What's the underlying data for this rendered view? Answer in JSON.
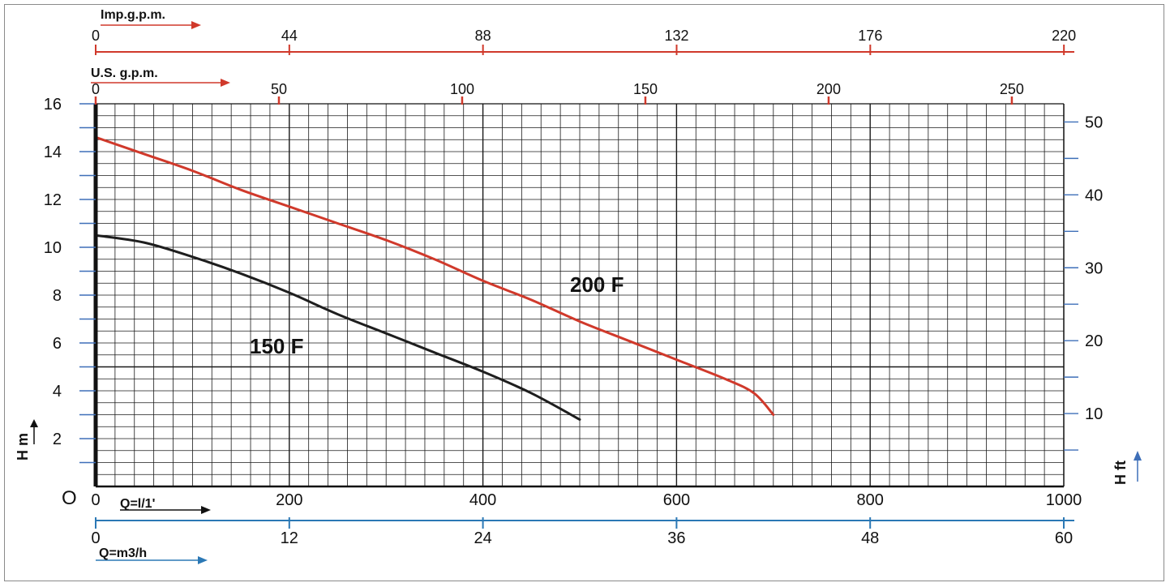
{
  "colors": {
    "curve_200F": "#d0392b",
    "curve_150F": "#1e1e1e",
    "imp_axis": "#d0392b",
    "usg_axis": "#d0392b",
    "m3h_axis": "#2b78b5",
    "grid": "#1a1a1a",
    "ft_arrow": "#3e6fb8"
  },
  "chart_data": {
    "type": "line",
    "title": "",
    "xlabel": "Q=l/1'",
    "ylabel": "H m",
    "xlim": [
      0,
      1000
    ],
    "ylim": [
      0,
      16
    ],
    "grid": true,
    "origin_label": "O",
    "x_ticks": [
      "0",
      "200",
      "400",
      "600",
      "800",
      "1000"
    ],
    "y_ticks": [
      "2",
      "4",
      "6",
      "8",
      "10",
      "12",
      "14",
      "16"
    ],
    "secondary_axes": {
      "imp_gpm": {
        "label": "Imp.g.p.m.",
        "ticks": [
          "0",
          "44",
          "88",
          "132",
          "176",
          "220"
        ]
      },
      "us_gpm": {
        "label": "U.S. g.p.m.",
        "ticks": [
          "0",
          "50",
          "100",
          "150",
          "200",
          "250"
        ]
      },
      "m3h": {
        "label": "Q=m3/h",
        "ticks": [
          "0",
          "12",
          "24",
          "36",
          "48",
          "60"
        ]
      },
      "ft": {
        "label": "H ft",
        "ticks": [
          "10",
          "20",
          "30",
          "40",
          "50"
        ]
      }
    },
    "series": [
      {
        "name": "200 F",
        "x": [
          0,
          50,
          100,
          150,
          200,
          250,
          300,
          350,
          400,
          450,
          500,
          550,
          600,
          650,
          680,
          700
        ],
        "y": [
          14.6,
          13.9,
          13.2,
          12.4,
          11.7,
          11.0,
          10.3,
          9.5,
          8.6,
          7.8,
          6.9,
          6.1,
          5.3,
          4.5,
          3.9,
          3.0
        ]
      },
      {
        "name": "150 F",
        "x": [
          0,
          50,
          100,
          150,
          200,
          250,
          300,
          350,
          400,
          450,
          500
        ],
        "y": [
          10.5,
          10.2,
          9.6,
          8.9,
          8.1,
          7.2,
          6.4,
          5.6,
          4.8,
          3.9,
          2.8
        ]
      }
    ]
  }
}
